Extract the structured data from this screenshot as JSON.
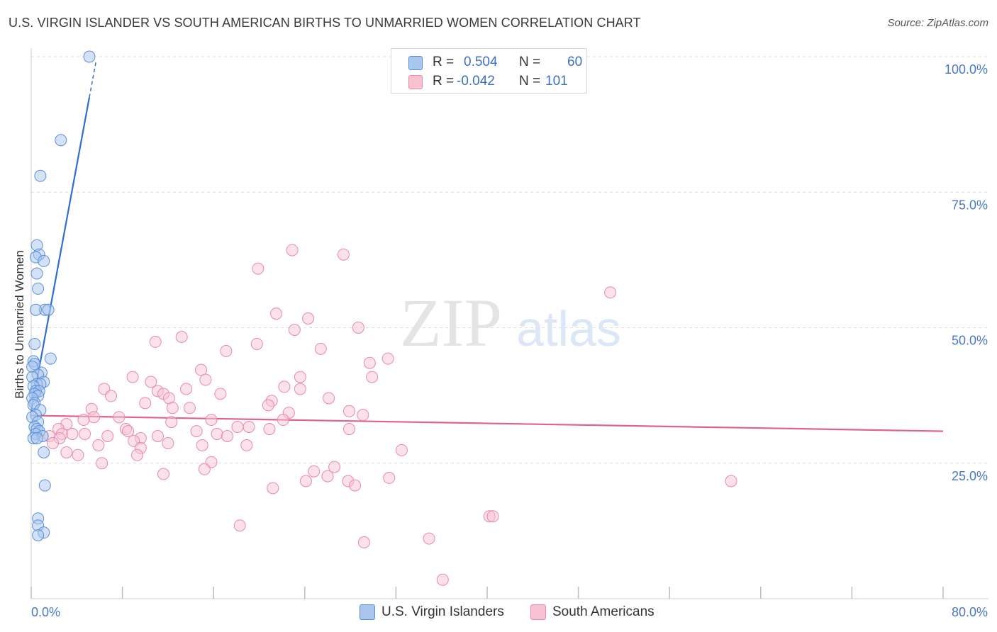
{
  "title": "U.S. VIRGIN ISLANDER VS SOUTH AMERICAN BIRTHS TO UNMARRIED WOMEN CORRELATION CHART",
  "source": "Source: ZipAtlas.com",
  "watermark": {
    "zip": "ZIP",
    "atlas": "atlas"
  },
  "legend": {
    "rows": [
      {
        "r_label": "R =",
        "r_value": "0.504",
        "n_label": "N =",
        "n_value": "60"
      },
      {
        "r_label": "R =",
        "r_value": "-0.042",
        "n_label": "N =",
        "n_value": "101"
      }
    ]
  },
  "bottom_legend": {
    "series1": "U.S. Virgin Islanders",
    "series2": "South Americans"
  },
  "colors": {
    "blue_fill": "#a9c6ee",
    "blue_stroke": "#5a8fd8",
    "blue_line": "#2e6fd0",
    "pink_fill": "#f7c3d3",
    "pink_stroke": "#e88aa8",
    "pink_line": "#e0628e",
    "grid": "#dedede",
    "axis_text": "#4a78c8"
  },
  "chart_data": {
    "type": "scatter",
    "title": "U.S. VIRGIN ISLANDER VS SOUTH AMERICAN BIRTHS TO UNMARRIED WOMEN CORRELATION CHART",
    "xlabel": "",
    "ylabel": "Births to Unmarried Women",
    "xlim": [
      0,
      80
    ],
    "ylim": [
      0,
      100
    ],
    "x_tick_labels": [
      "0.0%",
      "80.0%"
    ],
    "y_tick_labels": [
      "100.0%",
      "75.0%",
      "50.0%",
      "25.0%"
    ],
    "y_ticks": [
      100,
      75,
      50,
      25
    ],
    "x_minor_ticks": [
      0,
      8,
      16,
      24,
      32,
      40,
      48,
      56,
      64,
      72,
      80
    ],
    "series": [
      {
        "name": "U.S. Virgin Islanders",
        "R": 0.504,
        "N": 60,
        "trend": {
          "x": [
            0.0,
            5.1
          ],
          "y": [
            34.6,
            92.5
          ],
          "dashed_x": [
            5.1,
            5.7
          ],
          "dashed_y": [
            92.5,
            99.3
          ]
        },
        "points": [
          [
            5.1,
            100.0
          ],
          [
            2.6,
            84.6
          ],
          [
            0.8,
            78.0
          ],
          [
            0.5,
            65.2
          ],
          [
            0.7,
            63.5
          ],
          [
            0.4,
            63.0
          ],
          [
            1.1,
            62.3
          ],
          [
            0.5,
            60.0
          ],
          [
            0.6,
            57.2
          ],
          [
            1.2,
            53.3
          ],
          [
            1.5,
            53.3
          ],
          [
            0.4,
            53.3
          ],
          [
            0.3,
            47.0
          ],
          [
            1.7,
            44.3
          ],
          [
            0.2,
            43.8
          ],
          [
            0.3,
            43.3
          ],
          [
            0.1,
            42.8
          ],
          [
            0.9,
            41.7
          ],
          [
            0.6,
            41.3
          ],
          [
            0.1,
            40.9
          ],
          [
            1.1,
            40.0
          ],
          [
            0.5,
            39.6
          ],
          [
            0.8,
            39.6
          ],
          [
            0.2,
            39.2
          ],
          [
            0.4,
            38.3
          ],
          [
            0.7,
            38.3
          ],
          [
            0.3,
            37.8
          ],
          [
            0.6,
            37.4
          ],
          [
            0.1,
            37.0
          ],
          [
            0.3,
            36.1
          ],
          [
            0.2,
            35.7
          ],
          [
            0.8,
            34.8
          ],
          [
            0.4,
            33.9
          ],
          [
            0.1,
            33.5
          ],
          [
            0.6,
            32.6
          ],
          [
            0.3,
            31.7
          ],
          [
            0.5,
            31.3
          ],
          [
            0.7,
            30.9
          ],
          [
            0.4,
            30.4
          ],
          [
            1.0,
            30.0
          ],
          [
            0.2,
            29.6
          ],
          [
            0.5,
            29.6
          ],
          [
            1.1,
            27.0
          ],
          [
            1.2,
            20.9
          ],
          [
            0.6,
            14.8
          ],
          [
            0.6,
            13.5
          ],
          [
            1.1,
            12.2
          ],
          [
            0.6,
            11.7
          ]
        ]
      },
      {
        "name": "South Americans",
        "R": -0.042,
        "N": 101,
        "trend": {
          "x": [
            0,
            80
          ],
          "y": [
            33.8,
            30.9
          ]
        },
        "points": [
          [
            22.9,
            64.3
          ],
          [
            27.4,
            63.5
          ],
          [
            19.9,
            60.9
          ],
          [
            50.8,
            56.5
          ],
          [
            21.5,
            52.6
          ],
          [
            24.3,
            51.7
          ],
          [
            23.1,
            49.6
          ],
          [
            28.7,
            50.0
          ],
          [
            13.2,
            48.3
          ],
          [
            10.9,
            47.4
          ],
          [
            19.8,
            47.0
          ],
          [
            25.4,
            46.1
          ],
          [
            17.1,
            45.7
          ],
          [
            31.3,
            44.3
          ],
          [
            29.7,
            43.5
          ],
          [
            14.9,
            42.2
          ],
          [
            23.6,
            40.9
          ],
          [
            8.9,
            40.9
          ],
          [
            15.3,
            40.4
          ],
          [
            29.9,
            40.9
          ],
          [
            10.5,
            40.0
          ],
          [
            22.2,
            39.1
          ],
          [
            23.6,
            38.7
          ],
          [
            6.4,
            38.7
          ],
          [
            13.6,
            38.7
          ],
          [
            11.1,
            38.3
          ],
          [
            16.6,
            37.8
          ],
          [
            11.6,
            37.8
          ],
          [
            7.0,
            37.4
          ],
          [
            26.1,
            37.0
          ],
          [
            12.1,
            37.0
          ],
          [
            21.1,
            36.5
          ],
          [
            10.0,
            36.1
          ],
          [
            20.8,
            35.7
          ],
          [
            12.4,
            35.2
          ],
          [
            13.9,
            35.2
          ],
          [
            5.3,
            35.0
          ],
          [
            22.6,
            34.3
          ],
          [
            27.9,
            34.6
          ],
          [
            29.1,
            33.9
          ],
          [
            5.5,
            33.5
          ],
          [
            7.7,
            33.5
          ],
          [
            15.8,
            33.0
          ],
          [
            22.1,
            33.0
          ],
          [
            4.6,
            33.0
          ],
          [
            12.3,
            32.6
          ],
          [
            3.1,
            32.2
          ],
          [
            18.1,
            31.7
          ],
          [
            19.1,
            31.7
          ],
          [
            20.9,
            31.3
          ],
          [
            27.9,
            31.3
          ],
          [
            8.3,
            31.3
          ],
          [
            2.4,
            31.3
          ],
          [
            8.5,
            30.9
          ],
          [
            14.5,
            30.9
          ],
          [
            16.3,
            30.4
          ],
          [
            2.7,
            30.4
          ],
          [
            3.6,
            30.4
          ],
          [
            4.7,
            30.4
          ],
          [
            11.1,
            30.0
          ],
          [
            6.7,
            30.0
          ],
          [
            17.2,
            30.0
          ],
          [
            1.6,
            30.0
          ],
          [
            2.5,
            29.6
          ],
          [
            9.6,
            29.6
          ],
          [
            9.0,
            29.1
          ],
          [
            12.0,
            28.7
          ],
          [
            1.9,
            28.7
          ],
          [
            18.9,
            28.3
          ],
          [
            5.9,
            28.3
          ],
          [
            9.6,
            27.8
          ],
          [
            15.0,
            28.3
          ],
          [
            3.1,
            27.0
          ],
          [
            32.5,
            27.4
          ],
          [
            4.1,
            26.5
          ],
          [
            9.3,
            26.5
          ],
          [
            15.8,
            25.2
          ],
          [
            6.2,
            25.0
          ],
          [
            26.6,
            24.3
          ],
          [
            15.2,
            23.9
          ],
          [
            24.8,
            23.5
          ],
          [
            11.6,
            23.0
          ],
          [
            26.0,
            22.6
          ],
          [
            31.4,
            22.3
          ],
          [
            24.1,
            21.7
          ],
          [
            61.4,
            21.7
          ],
          [
            27.8,
            21.7
          ],
          [
            28.4,
            20.9
          ],
          [
            21.2,
            20.4
          ],
          [
            18.3,
            13.5
          ],
          [
            40.2,
            15.2
          ],
          [
            40.5,
            15.2
          ],
          [
            34.9,
            11.1
          ],
          [
            29.2,
            10.4
          ],
          [
            36.1,
            3.5
          ]
        ]
      }
    ]
  }
}
